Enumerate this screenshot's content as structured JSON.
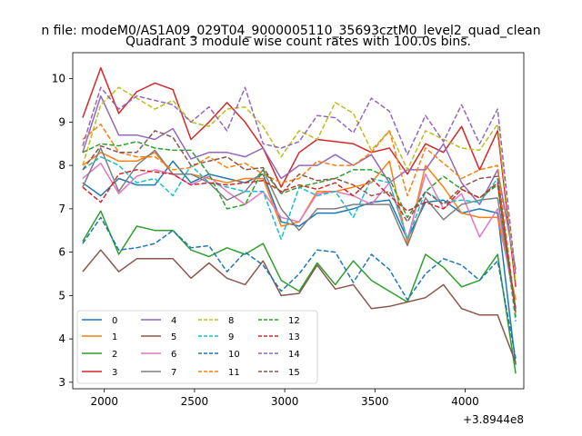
{
  "chart_data": {
    "type": "line",
    "suptitle": "n file: modeM0/AS1A09_029T04_9000005110_35693cztM0_level2_quad_clean",
    "title": "Quadrant 3 module wise count rates with 100.0s bins.",
    "xlabel": "",
    "ylabel": "",
    "x_offset_label": "+3.8944e8",
    "xlim": [
      1825,
      4325
    ],
    "ylim": [
      2.85,
      10.6
    ],
    "xticks": [
      2000,
      2500,
      3000,
      3500,
      4000
    ],
    "yticks": [
      3,
      4,
      5,
      6,
      7,
      8,
      9,
      10
    ],
    "legend_position": "lower-left",
    "x": [
      1880,
      1980,
      2080,
      2180,
      2280,
      2380,
      2480,
      2580,
      2680,
      2780,
      2880,
      2980,
      3080,
      3180,
      3280,
      3380,
      3480,
      3580,
      3680,
      3780,
      3880,
      3980,
      4080,
      4180,
      4280
    ],
    "series": [
      {
        "name": "0",
        "color": "#1f77b4",
        "dash": "solid",
        "values": [
          7.6,
          7.3,
          7.7,
          7.55,
          7.55,
          8.1,
          7.6,
          7.8,
          7.7,
          7.6,
          7.8,
          6.7,
          6.6,
          6.9,
          6.9,
          7.0,
          7.15,
          7.2,
          6.3,
          7.15,
          7.2,
          6.9,
          7.0,
          6.9,
          3.4
        ]
      },
      {
        "name": "1",
        "color": "#ff7f0e",
        "dash": "solid",
        "values": [
          8.0,
          8.3,
          8.1,
          8.1,
          8.3,
          7.8,
          7.8,
          7.7,
          7.6,
          7.7,
          7.7,
          6.6,
          6.7,
          7.4,
          7.4,
          7.5,
          7.6,
          8.1,
          6.2,
          8.0,
          7.5,
          6.9,
          6.8,
          6.8,
          4.9
        ]
      },
      {
        "name": "2",
        "color": "#2ca02c",
        "dash": "solid",
        "values": [
          6.25,
          6.95,
          5.95,
          6.6,
          6.5,
          6.5,
          6.05,
          5.9,
          6.1,
          5.95,
          6.2,
          5.35,
          5.1,
          5.75,
          5.25,
          5.8,
          5.35,
          5.1,
          4.85,
          5.95,
          5.65,
          5.2,
          5.35,
          5.95,
          3.2
        ]
      },
      {
        "name": "3",
        "color": "#d62728",
        "dash": "solid",
        "values": [
          9.1,
          10.25,
          9.2,
          9.7,
          9.9,
          9.75,
          8.6,
          9.0,
          9.45,
          9.0,
          8.4,
          7.5,
          8.3,
          8.6,
          8.55,
          8.5,
          8.3,
          8.4,
          7.8,
          8.5,
          8.3,
          8.9,
          7.9,
          8.8,
          5.2
        ]
      },
      {
        "name": "4",
        "color": "#9467bd",
        "dash": "solid",
        "values": [
          8.3,
          9.6,
          8.7,
          8.7,
          8.6,
          8.85,
          8.15,
          8.3,
          8.3,
          8.2,
          8.4,
          7.7,
          8.0,
          8.0,
          8.25,
          8.0,
          8.25,
          7.6,
          7.9,
          7.9,
          8.5,
          7.6,
          7.1,
          7.9,
          5.6
        ]
      },
      {
        "name": "5",
        "color": "#8c564b",
        "dash": "solid",
        "values": [
          5.55,
          6.05,
          5.55,
          5.85,
          5.85,
          5.85,
          5.4,
          5.75,
          5.4,
          5.25,
          5.8,
          5.0,
          5.05,
          5.7,
          5.15,
          5.25,
          4.7,
          4.75,
          4.85,
          4.95,
          5.25,
          4.7,
          4.55,
          4.55,
          3.45
        ]
      },
      {
        "name": "6",
        "color": "#e377c2",
        "dash": "solid",
        "values": [
          7.7,
          8.05,
          7.35,
          7.75,
          7.9,
          7.8,
          7.55,
          7.75,
          7.4,
          7.1,
          7.4,
          6.8,
          6.7,
          7.35,
          7.4,
          7.3,
          7.1,
          7.6,
          6.3,
          7.8,
          7.0,
          7.35,
          6.35,
          7.0,
          4.7
        ]
      },
      {
        "name": "7",
        "color": "#7f7f7f",
        "dash": "solid",
        "values": [
          7.5,
          8.4,
          7.4,
          8.0,
          8.35,
          7.8,
          7.8,
          7.6,
          7.2,
          7.4,
          7.9,
          7.0,
          6.5,
          7.0,
          7.0,
          7.1,
          7.1,
          7.1,
          6.15,
          7.25,
          6.75,
          7.1,
          7.2,
          7.25,
          4.7
        ]
      },
      {
        "name": "8",
        "color": "#bcbd22",
        "dash": "dashed",
        "values": [
          8.0,
          9.4,
          9.8,
          9.55,
          9.3,
          9.5,
          9.0,
          8.9,
          9.3,
          9.35,
          8.9,
          8.2,
          8.8,
          8.6,
          9.45,
          9.2,
          8.35,
          8.8,
          7.9,
          8.8,
          8.6,
          8.4,
          8.35,
          8.95,
          5.3
        ]
      },
      {
        "name": "9",
        "color": "#17becf",
        "dash": "dashed",
        "values": [
          7.9,
          8.2,
          8.0,
          7.6,
          7.7,
          7.3,
          8.0,
          7.6,
          7.5,
          7.4,
          7.4,
          6.3,
          7.5,
          7.3,
          7.4,
          6.8,
          7.7,
          7.6,
          6.3,
          7.4,
          7.15,
          7.2,
          7.15,
          7.7,
          4.4
        ]
      },
      {
        "name": "10",
        "color": "#1f77b4",
        "dash": "dashed",
        "values": [
          6.2,
          6.8,
          6.05,
          6.1,
          6.2,
          6.5,
          6.1,
          6.15,
          5.55,
          6.0,
          5.7,
          5.1,
          5.5,
          6.05,
          6.0,
          5.3,
          5.95,
          5.6,
          4.9,
          5.5,
          5.85,
          5.7,
          5.35,
          5.8,
          3.55
        ]
      },
      {
        "name": "11",
        "color": "#ff7f0e",
        "dash": "dashed",
        "values": [
          8.6,
          8.95,
          8.3,
          8.2,
          8.2,
          7.9,
          7.95,
          8.2,
          7.95,
          8.05,
          7.8,
          7.6,
          7.7,
          8.1,
          8.0,
          8.0,
          8.3,
          8.8,
          7.3,
          8.4,
          8.05,
          7.7,
          7.9,
          8.0,
          4.6
        ]
      },
      {
        "name": "12",
        "color": "#2ca02c",
        "dash": "dashed",
        "values": [
          8.3,
          8.5,
          8.45,
          8.55,
          8.4,
          8.35,
          8.35,
          7.8,
          7.0,
          7.1,
          7.9,
          7.35,
          7.5,
          7.6,
          7.7,
          7.9,
          7.9,
          7.7,
          6.8,
          7.4,
          7.75,
          7.45,
          7.25,
          7.55,
          4.5
        ]
      },
      {
        "name": "13",
        "color": "#d62728",
        "dash": "dashed",
        "values": [
          7.5,
          7.15,
          7.8,
          7.9,
          7.85,
          7.8,
          7.55,
          7.6,
          7.55,
          7.6,
          7.65,
          7.4,
          7.55,
          7.45,
          7.6,
          7.3,
          7.7,
          7.3,
          6.95,
          7.15,
          7.0,
          7.45,
          7.25,
          7.6,
          4.65
        ]
      },
      {
        "name": "14",
        "color": "#9467bd",
        "dash": "dashed",
        "values": [
          8.45,
          9.8,
          9.3,
          9.6,
          9.5,
          9.4,
          9.0,
          9.35,
          8.8,
          9.8,
          8.5,
          8.4,
          8.55,
          9.15,
          9.1,
          8.75,
          9.55,
          9.25,
          8.25,
          9.15,
          8.55,
          9.4,
          8.5,
          9.3,
          5.45
        ]
      },
      {
        "name": "15",
        "color": "#8c564b",
        "dash": "dashed",
        "values": [
          7.9,
          8.45,
          8.3,
          8.3,
          8.8,
          8.65,
          8.0,
          8.1,
          8.2,
          7.9,
          7.95,
          7.35,
          7.8,
          7.65,
          7.7,
          7.55,
          7.3,
          7.4,
          6.7,
          7.4,
          7.1,
          7.5,
          7.7,
          7.75,
          4.6
        ]
      }
    ]
  }
}
